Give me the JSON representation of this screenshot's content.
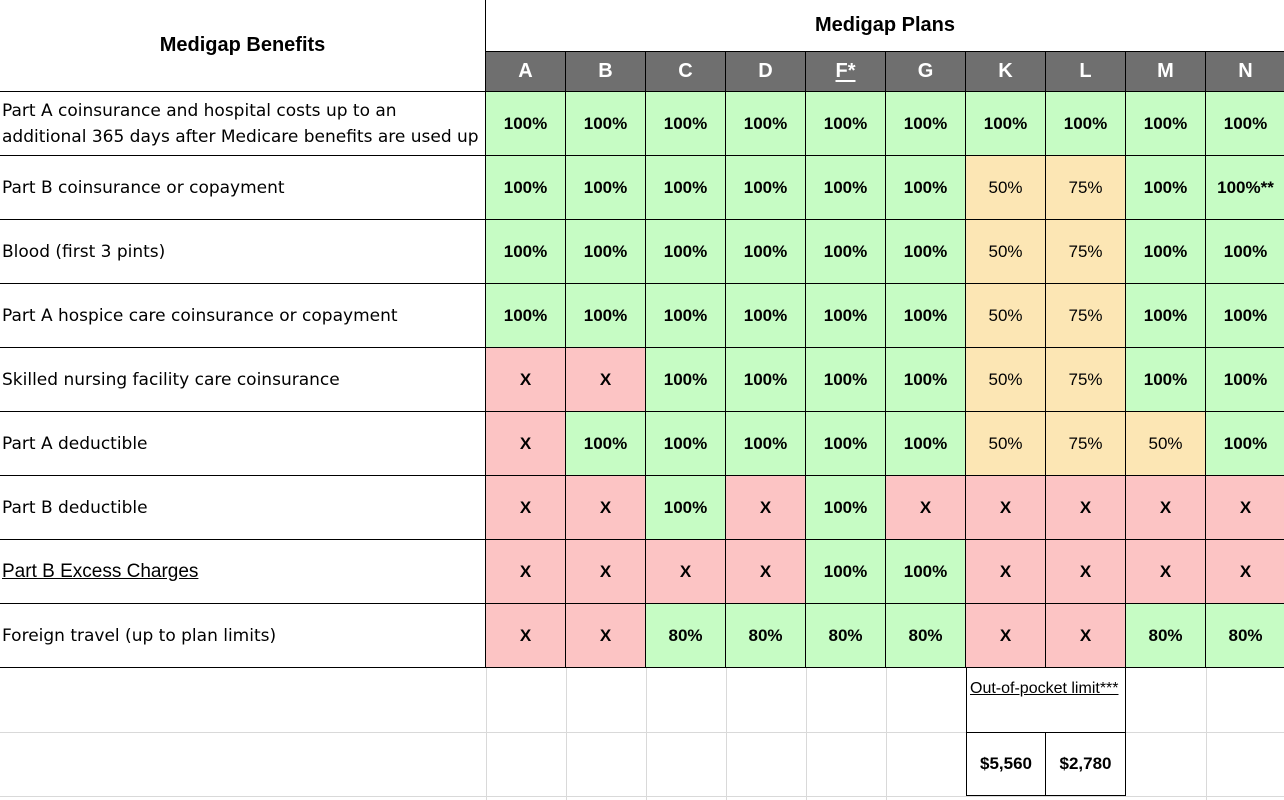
{
  "header": {
    "benefits_title": "Medigap Benefits",
    "plans_title": "Medigap Plans"
  },
  "plans": [
    "A",
    "B",
    "C",
    "D",
    "F*",
    "G",
    "K",
    "L",
    "M",
    "N"
  ],
  "colors": {
    "covered": "#c6fcc4",
    "not_covered": "#fcc4c4",
    "partial": "#fce6b4",
    "header_bg": "#6f6f6f"
  },
  "rows": [
    {
      "label": "Part A coinsurance and hospital costs up to an additional 365 days after Medicare benefits are used up",
      "values": [
        "100%",
        "100%",
        "100%",
        "100%",
        "100%",
        "100%",
        "100%",
        "100%",
        "100%",
        "100%"
      ]
    },
    {
      "label": "Part B coinsurance or copayment",
      "values": [
        "100%",
        "100%",
        "100%",
        "100%",
        "100%",
        "100%",
        "50%",
        "75%",
        "100%",
        "100%**"
      ]
    },
    {
      "label": "Blood (first 3 pints)",
      "values": [
        "100%",
        "100%",
        "100%",
        "100%",
        "100%",
        "100%",
        "50%",
        "75%",
        "100%",
        "100%"
      ]
    },
    {
      "label": "Part A hospice care coinsurance or copayment",
      "values": [
        "100%",
        "100%",
        "100%",
        "100%",
        "100%",
        "100%",
        "50%",
        "75%",
        "100%",
        "100%"
      ]
    },
    {
      "label": "Skilled nursing facility care coinsurance",
      "values": [
        "X",
        "X",
        "100%",
        "100%",
        "100%",
        "100%",
        "50%",
        "75%",
        "100%",
        "100%"
      ]
    },
    {
      "label": "Part A deductible",
      "values": [
        "X",
        "100%",
        "100%",
        "100%",
        "100%",
        "100%",
        "50%",
        "75%",
        "50%",
        "100%"
      ]
    },
    {
      "label": "Part B deductible",
      "values": [
        "X",
        "X",
        "100%",
        "X",
        "100%",
        "X",
        "X",
        "X",
        "X",
        "X"
      ]
    },
    {
      "label": "Part B Excess Charges",
      "values": [
        "X",
        "X",
        "X",
        "X",
        "100%",
        "100%",
        "X",
        "X",
        "X",
        "X"
      ]
    },
    {
      "label": "Foreign travel (up to plan limits)",
      "values": [
        "X",
        "X",
        "80%",
        "80%",
        "80%",
        "80%",
        "X",
        "X",
        "80%",
        "80%"
      ]
    }
  ],
  "out_of_pocket": {
    "label": "Out-of-pocket limit***",
    "k_value": "$5,560",
    "l_value": "$2,780"
  }
}
